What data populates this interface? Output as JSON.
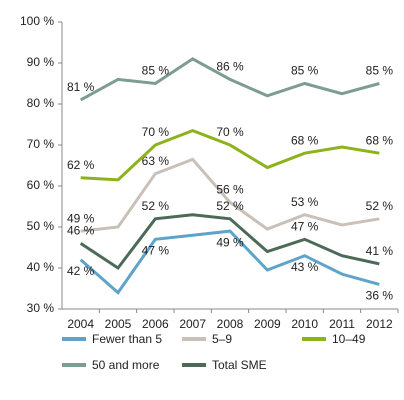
{
  "chart_data": {
    "type": "line",
    "categories": [
      "2004",
      "2005",
      "2006",
      "2007",
      "2008",
      "2009",
      "2010",
      "2011",
      "2012"
    ],
    "ylim": [
      30,
      100
    ],
    "yticks": [
      {
        "value": 30,
        "label": "30 %"
      },
      {
        "value": 40,
        "label": "40 %"
      },
      {
        "value": 50,
        "label": "50 %"
      },
      {
        "value": 60,
        "label": "60 %"
      },
      {
        "value": 70,
        "label": "70 %"
      },
      {
        "value": 80,
        "label": "80 %"
      },
      {
        "value": 90,
        "label": "90 %"
      },
      {
        "value": 100,
        "label": "100 %"
      }
    ],
    "series": [
      {
        "name": "Fewer than 5",
        "color": "#5ea3c9",
        "values": [
          42,
          34,
          47,
          48,
          49,
          39.5,
          43,
          38.5,
          36
        ],
        "value_labels": [
          "42 %",
          null,
          "47 %",
          null,
          "49 %",
          null,
          "43 %",
          null,
          "36 %"
        ]
      },
      {
        "name": "5–9",
        "color": "#c9c0b8",
        "values": [
          49,
          50,
          63,
          66.5,
          56,
          49.5,
          53,
          50.5,
          52
        ],
        "value_labels": [
          "49 %",
          null,
          "63 %",
          null,
          "56 %",
          null,
          "53 %",
          null,
          "52 %"
        ]
      },
      {
        "name": "10–49",
        "color": "#8cb31c",
        "values": [
          62,
          61.5,
          70,
          73.5,
          70,
          64.5,
          68,
          69.5,
          68
        ],
        "value_labels": [
          "62 %",
          null,
          "70 %",
          null,
          "70 %",
          null,
          "68 %",
          null,
          "68 %"
        ]
      },
      {
        "name": "50 and more",
        "color": "#7d9c94",
        "values": [
          81,
          86,
          85,
          91,
          86,
          82,
          85,
          82.5,
          85
        ],
        "value_labels": [
          "81 %",
          null,
          "85 %",
          null,
          "86 %",
          null,
          "85 %",
          null,
          "85 %"
        ]
      },
      {
        "name": "Total SME",
        "color": "#4b6b58",
        "values": [
          46,
          40,
          52,
          53,
          52,
          44,
          47,
          43,
          41
        ],
        "value_labels": [
          "46 %",
          null,
          "52 %",
          null,
          "52 %",
          null,
          "47 %",
          null,
          "41 %"
        ]
      }
    ]
  }
}
